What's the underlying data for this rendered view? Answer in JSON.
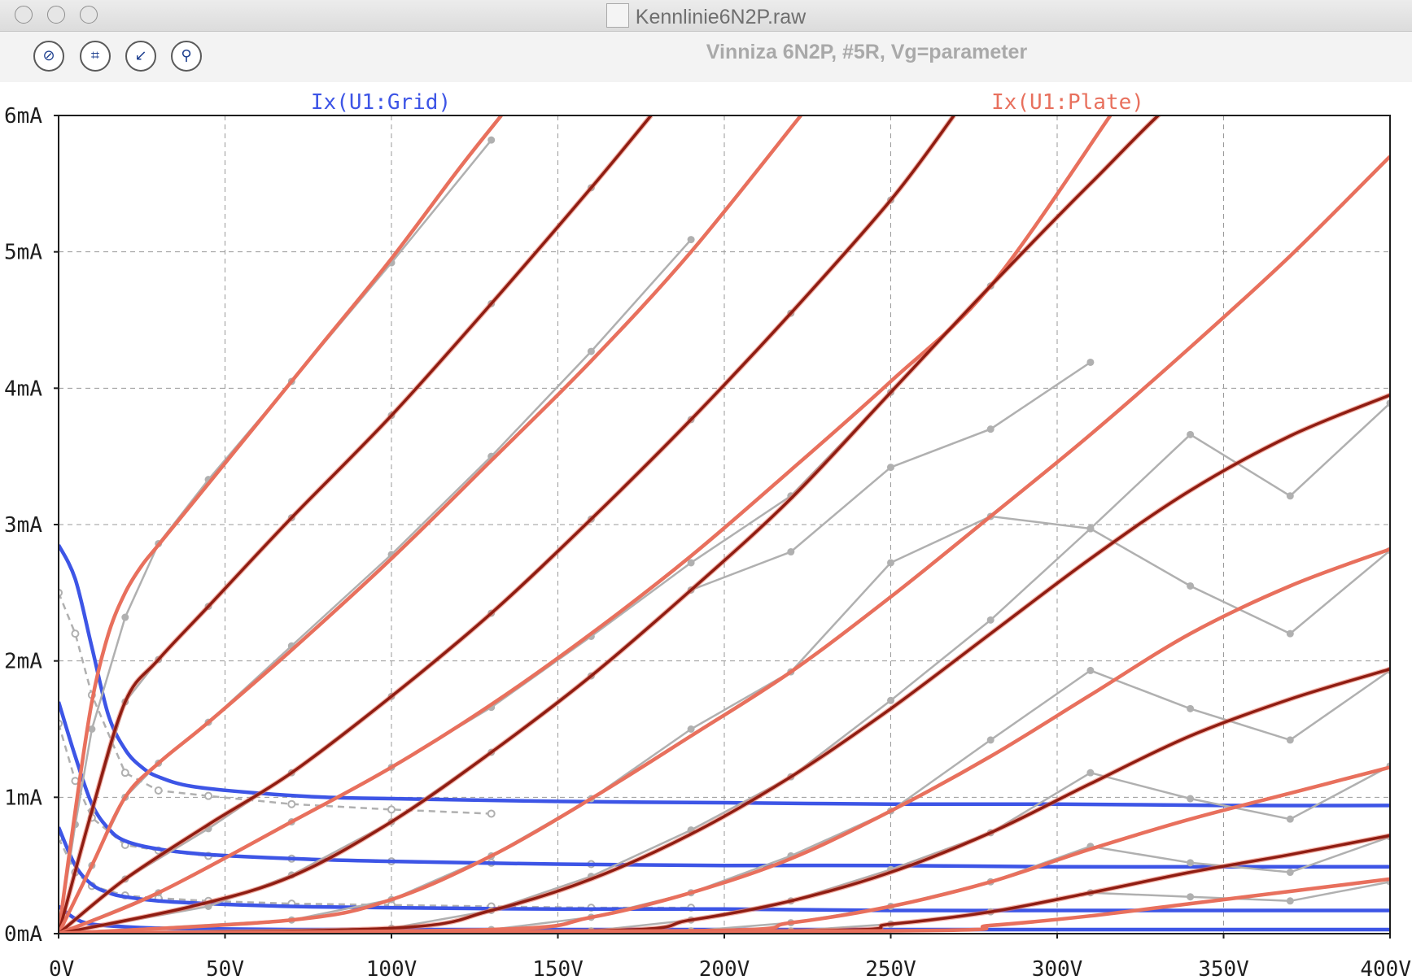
{
  "window": {
    "title": "Kennlinie6N2P.raw"
  },
  "toolbar": {
    "icons": [
      "zoom-cancel-icon",
      "autorange-icon",
      "zoom-back-icon",
      "pin-tool-icon"
    ]
  },
  "plot_title": "Vinniza 6N2P, #5R, Vg=parameter",
  "chart_data": {
    "type": "line",
    "title": "Vinniza 6N2P, #5R, Vg=parameter",
    "x_ticks": [
      "0V",
      "50V",
      "100V",
      "150V",
      "200V",
      "250V",
      "300V",
      "350V",
      "400V"
    ],
    "y_ticks": [
      "0mA",
      "1mA",
      "2mA",
      "3mA",
      "4mA",
      "5mA",
      "6mA"
    ],
    "xlim": [
      0,
      400
    ],
    "ylim": [
      0,
      6
    ],
    "x_unit": "V",
    "y_unit": "mA",
    "grid": true,
    "legend": [
      {
        "name": "Ix(U1:Grid)",
        "color": "#3d55e6",
        "position": "top-left"
      },
      {
        "name": "Ix(U1:Plate)",
        "color": "#e8705d",
        "position": "top-right"
      }
    ],
    "plate_curves_simulated": [
      {
        "x": [
          0,
          5,
          10,
          15,
          20,
          25,
          30,
          40,
          60,
          80,
          100,
          120,
          133
        ],
        "y": [
          0,
          0.9,
          1.7,
          2.2,
          2.5,
          2.7,
          2.85,
          3.15,
          3.75,
          4.35,
          4.95,
          5.6,
          6.0
        ]
      },
      {
        "x": [
          0,
          10,
          20,
          30,
          45,
          70,
          100,
          130,
          160,
          178
        ],
        "y": [
          0,
          0.9,
          1.7,
          2.01,
          2.4,
          3.05,
          3.8,
          4.62,
          5.47,
          6.0
        ]
      },
      {
        "x": [
          0,
          10,
          20,
          30,
          45,
          70,
          100,
          130,
          160,
          190,
          223
        ],
        "y": [
          0,
          0.5,
          1.0,
          1.25,
          1.55,
          2.08,
          2.75,
          3.47,
          4.2,
          5.0,
          6.0
        ]
      },
      {
        "x": [
          0,
          20,
          45,
          70,
          100,
          130,
          160,
          190,
          220,
          250,
          269
        ],
        "y": [
          0,
          0.4,
          0.8,
          1.18,
          1.74,
          2.35,
          3.04,
          3.77,
          4.55,
          5.38,
          6.0
        ]
      },
      {
        "x": [
          0,
          30,
          70,
          100,
          130,
          160,
          190,
          220,
          250,
          280,
          316
        ],
        "y": [
          0,
          0.3,
          0.82,
          1.22,
          1.68,
          2.2,
          2.77,
          3.4,
          4.05,
          4.75,
          6.0
        ]
      },
      {
        "x": [
          0,
          40,
          70,
          100,
          130,
          160,
          190,
          220,
          250,
          280,
          310,
          340,
          366
        ],
        "y": [
          0,
          0.2,
          0.42,
          0.82,
          1.33,
          1.89,
          2.52,
          3.19,
          3.97,
          4.75,
          5.5,
          6.2,
          6.5
        ]
      },
      {
        "x": [
          0,
          70,
          100,
          130,
          160,
          190,
          220,
          250,
          280,
          310,
          340,
          370,
          400
        ],
        "y": [
          0,
          0.1,
          0.25,
          0.57,
          0.99,
          1.45,
          1.92,
          2.47,
          3.06,
          3.66,
          4.3,
          4.97,
          5.7
        ]
      },
      {
        "x": [
          0,
          100,
          130,
          160,
          190,
          220,
          250,
          280,
          310,
          340,
          370,
          400
        ],
        "y": [
          0,
          0.04,
          0.17,
          0.4,
          0.73,
          1.15,
          1.65,
          2.2,
          2.75,
          3.25,
          3.65,
          3.95
        ]
      },
      {
        "x": [
          0,
          130,
          160,
          190,
          220,
          250,
          280,
          310,
          340,
          370,
          400
        ],
        "y": [
          0,
          0.03,
          0.12,
          0.3,
          0.55,
          0.9,
          1.3,
          1.75,
          2.2,
          2.55,
          2.82
        ]
      },
      {
        "x": [
          0,
          160,
          190,
          220,
          250,
          280,
          310,
          340,
          370,
          400
        ],
        "y": [
          0,
          0.02,
          0.1,
          0.24,
          0.45,
          0.74,
          1.1,
          1.45,
          1.72,
          1.94
        ]
      },
      {
        "x": [
          0,
          190,
          220,
          250,
          280,
          310,
          340,
          370,
          400
        ],
        "y": [
          0,
          0.02,
          0.08,
          0.2,
          0.38,
          0.62,
          0.84,
          1.03,
          1.22
        ]
      },
      {
        "x": [
          0,
          220,
          250,
          280,
          310,
          340,
          370,
          400
        ],
        "y": [
          0,
          0.02,
          0.07,
          0.16,
          0.3,
          0.45,
          0.58,
          0.72
        ]
      },
      {
        "x": [
          0,
          250,
          280,
          310,
          340,
          370,
          400
        ],
        "y": [
          0,
          0.02,
          0.06,
          0.13,
          0.22,
          0.31,
          0.4
        ]
      }
    ],
    "plate_curves_measured": [
      {
        "x": [
          0,
          5,
          10,
          20,
          30,
          45,
          70,
          100,
          130
        ],
        "y": [
          0,
          0.8,
          1.5,
          2.32,
          2.86,
          3.33,
          4.05,
          4.92,
          5.82
        ]
      },
      {
        "x": [
          0,
          10,
          20,
          30,
          45,
          70,
          100,
          130,
          160
        ],
        "y": [
          0,
          0.9,
          1.7,
          2.01,
          2.4,
          3.05,
          3.8,
          4.62,
          5.47
        ]
      },
      {
        "x": [
          0,
          10,
          20,
          30,
          45,
          70,
          100,
          130,
          160,
          190
        ],
        "y": [
          0,
          0.5,
          1.0,
          1.25,
          1.55,
          2.11,
          2.78,
          3.5,
          4.27,
          5.09
        ]
      },
      {
        "x": [
          0,
          20,
          45,
          70,
          100,
          130,
          160,
          190,
          220,
          250
        ],
        "y": [
          0,
          0.4,
          0.77,
          1.18,
          1.74,
          2.35,
          3.04,
          3.77,
          4.55,
          5.38
        ]
      },
      {
        "x": [
          0,
          30,
          70,
          100,
          130,
          160,
          190,
          220,
          250,
          280
        ],
        "y": [
          0,
          0.3,
          0.82,
          1.22,
          1.66,
          2.18,
          2.72,
          3.21,
          3.97,
          4.75
        ]
      },
      {
        "x": [
          0,
          45,
          70,
          100,
          130,
          160,
          190,
          220,
          250,
          280,
          310
        ],
        "y": [
          0,
          0.2,
          0.43,
          0.82,
          1.33,
          1.89,
          2.52,
          2.8,
          3.42,
          3.7,
          4.19
        ]
      },
      {
        "x": [
          0,
          70,
          100,
          130,
          160,
          190,
          220,
          250,
          280,
          310,
          340,
          370,
          400
        ],
        "y": [
          0,
          0.1,
          0.25,
          0.57,
          0.99,
          1.5,
          1.92,
          2.72,
          3.06,
          2.97,
          3.66,
          3.21,
          3.89
        ]
      },
      {
        "x": [
          0,
          100,
          130,
          160,
          190,
          220,
          250,
          280,
          310,
          340,
          370,
          400
        ],
        "y": [
          0,
          0.04,
          0.17,
          0.42,
          0.76,
          1.15,
          1.71,
          2.3,
          2.97,
          2.55,
          2.2,
          2.81
        ]
      },
      {
        "x": [
          0,
          130,
          160,
          190,
          220,
          250,
          280,
          310,
          340,
          370,
          400
        ],
        "y": [
          0,
          0.03,
          0.12,
          0.3,
          0.57,
          0.9,
          1.42,
          1.93,
          1.65,
          1.42,
          1.93
        ]
      },
      {
        "x": [
          0,
          160,
          190,
          220,
          250,
          280,
          310,
          340,
          370,
          400
        ],
        "y": [
          0,
          0.02,
          0.1,
          0.24,
          0.47,
          0.74,
          1.18,
          0.99,
          0.84,
          1.23
        ]
      },
      {
        "x": [
          0,
          190,
          220,
          250,
          280,
          310,
          340,
          370,
          400
        ],
        "y": [
          0,
          0.02,
          0.08,
          0.2,
          0.38,
          0.64,
          0.52,
          0.45,
          0.71
        ]
      },
      {
        "x": [
          0,
          220,
          250,
          280,
          310,
          340,
          370,
          400
        ],
        "y": [
          0,
          0.02,
          0.07,
          0.16,
          0.3,
          0.27,
          0.24,
          0.38
        ]
      }
    ],
    "grid_curves_simulated": [
      {
        "x": [
          0,
          5,
          10,
          15,
          20,
          25,
          30,
          40,
          60,
          80,
          100,
          150,
          200,
          250,
          300,
          350,
          400
        ],
        "y": [
          2.85,
          2.6,
          2.1,
          1.6,
          1.35,
          1.22,
          1.15,
          1.08,
          1.03,
          1.0,
          0.99,
          0.97,
          0.96,
          0.95,
          0.95,
          0.94,
          0.94
        ]
      },
      {
        "x": [
          0,
          5,
          10,
          15,
          20,
          30,
          45,
          70,
          100,
          150,
          200,
          250,
          300,
          350,
          400
        ],
        "y": [
          1.7,
          1.3,
          0.95,
          0.77,
          0.68,
          0.62,
          0.58,
          0.55,
          0.53,
          0.51,
          0.5,
          0.5,
          0.49,
          0.49,
          0.49
        ]
      },
      {
        "x": [
          0,
          5,
          10,
          15,
          20,
          30,
          45,
          70,
          100,
          150,
          200,
          250,
          300,
          350,
          400
        ],
        "y": [
          0.78,
          0.5,
          0.36,
          0.3,
          0.27,
          0.24,
          0.22,
          0.2,
          0.19,
          0.18,
          0.18,
          0.17,
          0.17,
          0.17,
          0.17
        ]
      },
      {
        "x": [
          0,
          5,
          10,
          20,
          30,
          45,
          70,
          100,
          150,
          200,
          250,
          300,
          350,
          400
        ],
        "y": [
          0.2,
          0.11,
          0.07,
          0.05,
          0.04,
          0.035,
          0.03,
          0.03,
          0.03,
          0.03,
          0.03,
          0.03,
          0.03,
          0.03
        ]
      }
    ],
    "grid_curves_measured": [
      {
        "x": [
          0,
          5,
          10,
          20,
          30,
          45,
          70,
          100,
          130
        ],
        "y": [
          2.5,
          2.2,
          1.75,
          1.18,
          1.05,
          1.01,
          0.95,
          0.91,
          0.88
        ]
      },
      {
        "x": [
          0,
          5,
          10,
          20,
          30,
          45,
          70,
          100,
          130,
          160
        ],
        "y": [
          1.54,
          1.12,
          0.85,
          0.65,
          0.61,
          0.57,
          0.55,
          0.53,
          0.52,
          0.51
        ]
      },
      {
        "x": [
          0,
          5,
          10,
          20,
          30,
          45,
          70,
          100,
          130,
          160,
          190
        ],
        "y": [
          0.7,
          0.45,
          0.35,
          0.28,
          0.26,
          0.24,
          0.22,
          0.21,
          0.2,
          0.19,
          0.19
        ]
      }
    ],
    "colors": {
      "grid_current": "#3d55e6",
      "plate_current": "#e8705d",
      "plate_current_dark": "#8f1d12",
      "measured": "#b0b0b0",
      "grid_lines": "#9a9a9a"
    }
  }
}
